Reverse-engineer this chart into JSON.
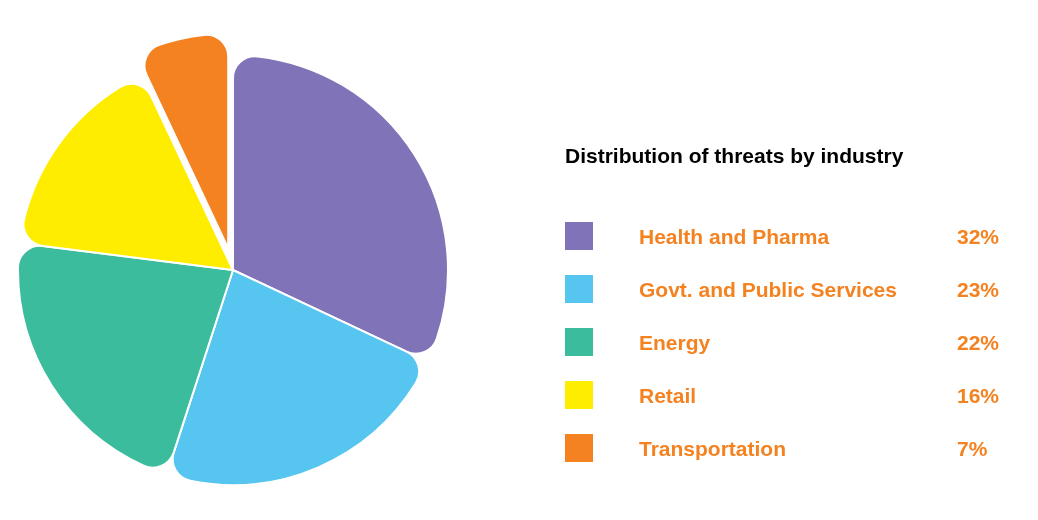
{
  "chart_data": {
    "type": "pie",
    "legend_title": "Distribution of threats by industry",
    "categories": [
      "Health and Pharma",
      "Govt. and Public Services",
      "Energy",
      "Retail",
      "Transportation"
    ],
    "values": [
      32,
      23,
      22,
      16,
      7
    ],
    "colors": [
      "#8073b7",
      "#56c5ef",
      "#3bbc9c",
      "#ffed00",
      "#f58220"
    ],
    "value_labels": [
      "32%",
      "23%",
      "22%",
      "16%",
      "7%"
    ],
    "legend": "right"
  }
}
